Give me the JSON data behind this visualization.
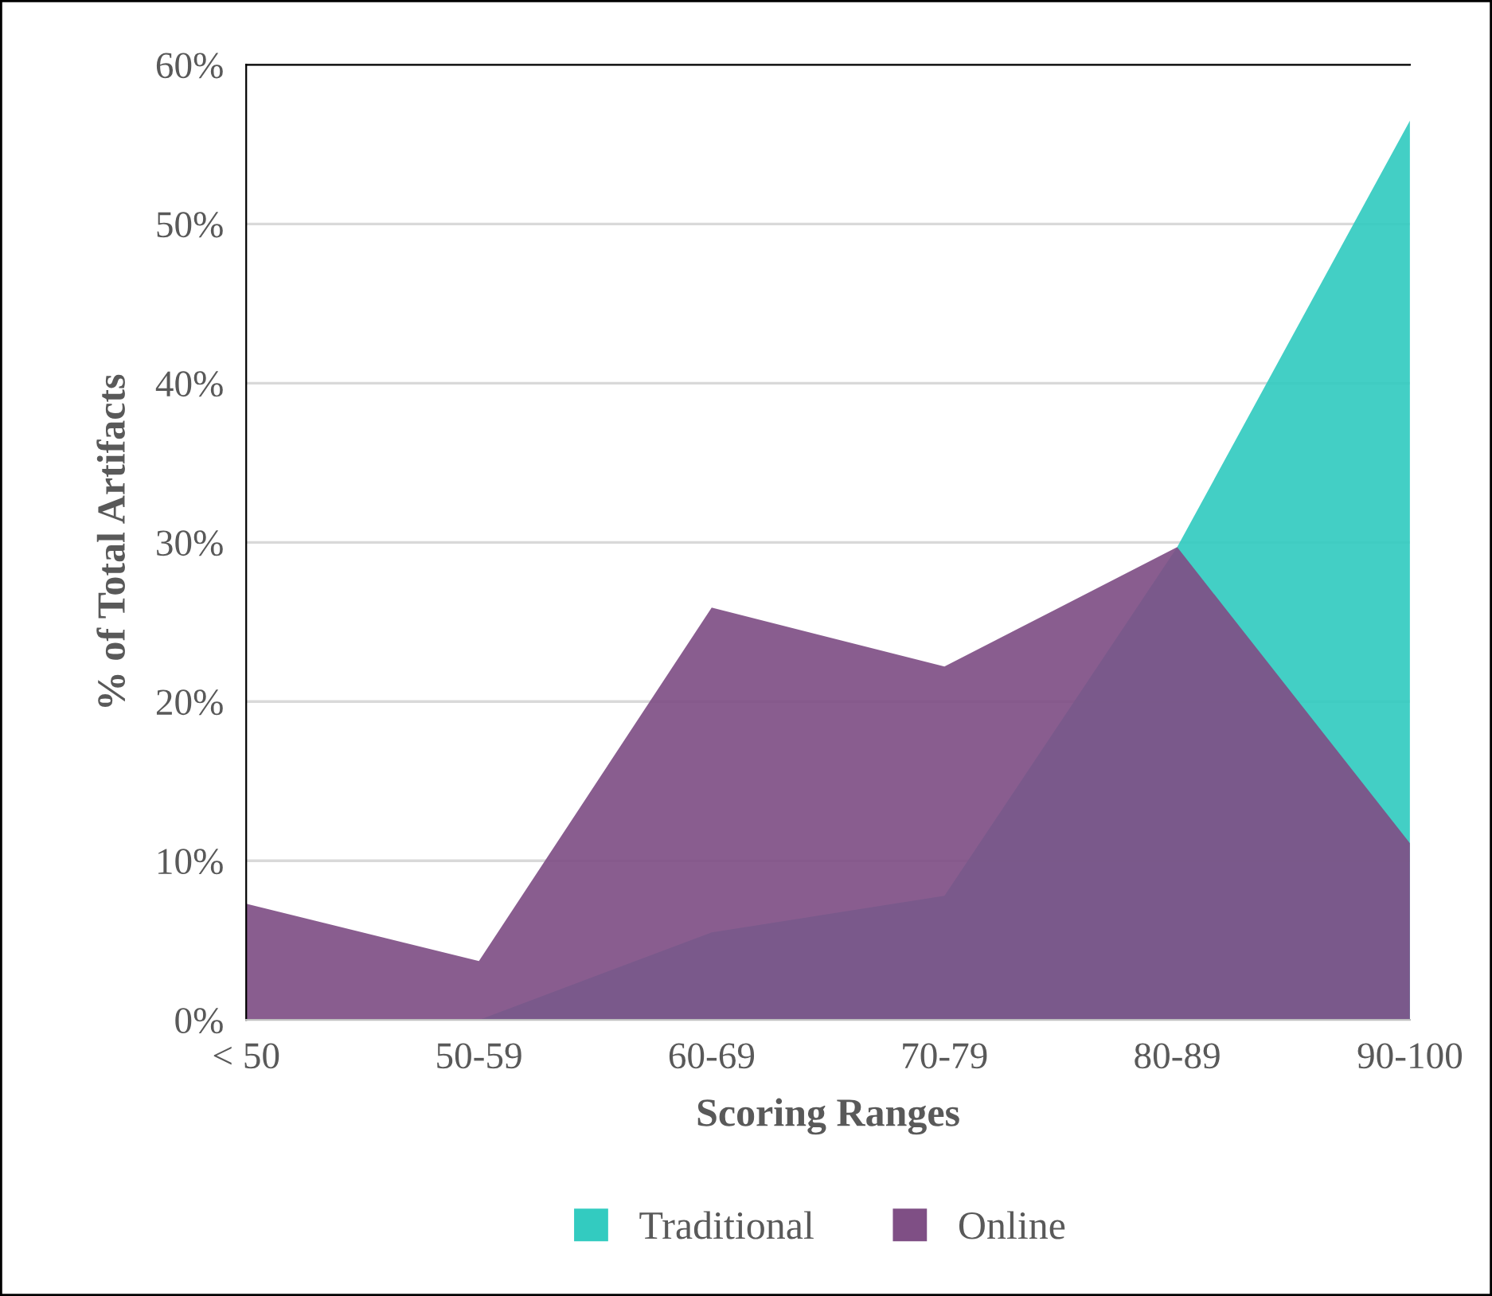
{
  "chart_data": {
    "type": "area",
    "xlabel": "Scoring Ranges",
    "ylabel": "% of Total Artifacts",
    "categories": [
      "< 50",
      "50-59",
      "60-69",
      "70-79",
      "80-89",
      "90-100"
    ],
    "series": [
      {
        "name": "Traditional",
        "color": "#33cbc0",
        "values": [
          0,
          0,
          5.5,
          7.8,
          29.7,
          56.5
        ]
      },
      {
        "name": "Online",
        "color": "#7f4f85",
        "values": [
          7.3,
          3.7,
          25.9,
          22.2,
          29.7,
          11.1
        ]
      }
    ],
    "ylim": [
      0,
      60
    ],
    "yticks": [
      {
        "value": 0,
        "label": "0%"
      },
      {
        "value": 10,
        "label": "10%"
      },
      {
        "value": 20,
        "label": "20%"
      },
      {
        "value": 30,
        "label": "30%"
      },
      {
        "value": 40,
        "label": "40%"
      },
      {
        "value": 50,
        "label": "50%"
      },
      {
        "value": 60,
        "label": "60%"
      }
    ],
    "grid": "y",
    "legend": "bottom"
  }
}
